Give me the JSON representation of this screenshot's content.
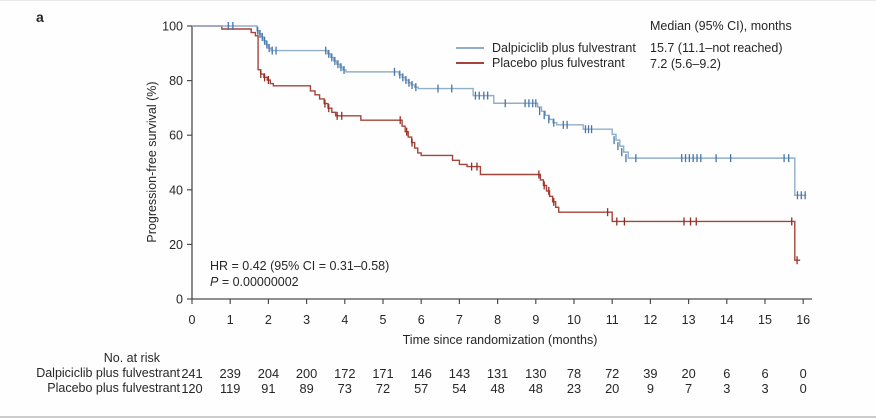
{
  "panel_label": "a",
  "chart_data": {
    "type": "line",
    "subtype": "kaplan-meier-step-curves",
    "title": "",
    "xlabel": "Time since randomization (months)",
    "ylabel": "Progression-free survival (%)",
    "xlim": [
      0,
      16.3
    ],
    "ylim": [
      0,
      100
    ],
    "xticks": [
      0,
      1,
      2,
      3,
      4,
      5,
      6,
      7,
      8,
      9,
      10,
      11,
      12,
      13,
      14,
      15,
      16
    ],
    "yticks": [
      0,
      20,
      40,
      60,
      80,
      100
    ],
    "grid": "off",
    "axis_color": "#4d4d4d",
    "legend": {
      "median_header": "Median (95% CI), months",
      "position": "top-right"
    },
    "annotations": {
      "hr_text": "HR = 0.42 (95% CI = 0.31–0.58)",
      "p_label": "P",
      "p_value": " = 0.00000002"
    },
    "series": [
      {
        "name": "Dalpiciclib plus fulvestrant",
        "color": "#92afc9",
        "censor_color": "#4576ab",
        "median_95ci": "15.7 (11.1–not reached)",
        "steps": [
          [
            0,
            100
          ],
          [
            1.7,
            98.3
          ],
          [
            1.76,
            97.1
          ],
          [
            1.82,
            96
          ],
          [
            1.88,
            94.6
          ],
          [
            1.94,
            93.2
          ],
          [
            2.0,
            91.9
          ],
          [
            2.07,
            91
          ],
          [
            3.55,
            89.8
          ],
          [
            3.63,
            88.5
          ],
          [
            3.71,
            87.2
          ],
          [
            3.79,
            86
          ],
          [
            3.87,
            84.9
          ],
          [
            3.95,
            83.9
          ],
          [
            4.03,
            83.2
          ],
          [
            5.42,
            82.2
          ],
          [
            5.5,
            81.2
          ],
          [
            5.58,
            80.2
          ],
          [
            5.66,
            79.2
          ],
          [
            5.74,
            78.4
          ],
          [
            5.83,
            77.6
          ],
          [
            5.92,
            77.1
          ],
          [
            7.36,
            74.5
          ],
          [
            7.9,
            71.7
          ],
          [
            9.05,
            70.3
          ],
          [
            9.15,
            68.8
          ],
          [
            9.25,
            67.3
          ],
          [
            9.35,
            65.8
          ],
          [
            9.45,
            64.6
          ],
          [
            9.55,
            63.8
          ],
          [
            10.24,
            62.2
          ],
          [
            11.0,
            60.3
          ],
          [
            11.1,
            58.2
          ],
          [
            11.2,
            56
          ],
          [
            11.3,
            53.8
          ],
          [
            11.42,
            51.6
          ],
          [
            15.78,
            38
          ],
          [
            16.08,
            38
          ]
        ],
        "censors": [
          [
            0.95,
            100
          ],
          [
            1.07,
            100
          ],
          [
            1.72,
            98.3
          ],
          [
            1.78,
            97.1
          ],
          [
            1.84,
            96
          ],
          [
            1.9,
            94.6
          ],
          [
            1.96,
            93.2
          ],
          [
            2.02,
            91.9
          ],
          [
            2.1,
            91
          ],
          [
            2.2,
            91
          ],
          [
            3.5,
            91
          ],
          [
            3.58,
            89.8
          ],
          [
            3.66,
            88.5
          ],
          [
            3.74,
            87.2
          ],
          [
            3.82,
            86
          ],
          [
            3.9,
            84.9
          ],
          [
            3.98,
            83.9
          ],
          [
            5.3,
            83.2
          ],
          [
            5.44,
            82.2
          ],
          [
            5.52,
            81.2
          ],
          [
            5.6,
            80.2
          ],
          [
            5.68,
            79.2
          ],
          [
            5.76,
            78.4
          ],
          [
            5.86,
            77.6
          ],
          [
            6.44,
            77.1
          ],
          [
            6.8,
            77.1
          ],
          [
            7.42,
            74.5
          ],
          [
            7.52,
            74.5
          ],
          [
            7.64,
            74.5
          ],
          [
            7.74,
            74.5
          ],
          [
            8.2,
            71.7
          ],
          [
            8.72,
            71.7
          ],
          [
            8.82,
            71.7
          ],
          [
            8.92,
            71.7
          ],
          [
            9.0,
            71.7
          ],
          [
            9.1,
            68.8
          ],
          [
            9.22,
            67.3
          ],
          [
            9.34,
            65.8
          ],
          [
            9.47,
            64.6
          ],
          [
            9.72,
            63.8
          ],
          [
            9.82,
            63.8
          ],
          [
            10.3,
            62.2
          ],
          [
            10.38,
            62.2
          ],
          [
            10.46,
            62.2
          ],
          [
            11.05,
            58.2
          ],
          [
            11.15,
            56
          ],
          [
            11.25,
            53.8
          ],
          [
            11.36,
            51.6
          ],
          [
            11.62,
            51.6
          ],
          [
            12.82,
            51.6
          ],
          [
            12.92,
            51.6
          ],
          [
            13.02,
            51.6
          ],
          [
            13.12,
            51.6
          ],
          [
            13.22,
            51.6
          ],
          [
            13.32,
            51.6
          ],
          [
            13.72,
            51.6
          ],
          [
            14.1,
            51.6
          ],
          [
            15.5,
            51.6
          ],
          [
            15.62,
            51.6
          ],
          [
            15.85,
            38
          ],
          [
            15.95,
            38
          ],
          [
            16.05,
            38
          ]
        ]
      },
      {
        "name": "Placebo plus fulvestrant",
        "color": "#a5443a",
        "censor_color": "#962d24",
        "median_95ci": "7.2 (5.6–9.2)",
        "steps": [
          [
            0,
            100
          ],
          [
            0.78,
            98.9
          ],
          [
            1.55,
            97.6
          ],
          [
            1.66,
            96.4
          ],
          [
            1.73,
            84
          ],
          [
            1.8,
            82.4
          ],
          [
            1.88,
            81.2
          ],
          [
            1.97,
            80.2
          ],
          [
            2.05,
            78.9
          ],
          [
            2.13,
            78.1
          ],
          [
            3.1,
            76.2
          ],
          [
            3.22,
            74.8
          ],
          [
            3.34,
            73.3
          ],
          [
            3.46,
            71.6
          ],
          [
            3.56,
            69.9
          ],
          [
            3.66,
            68.4
          ],
          [
            3.76,
            67.1
          ],
          [
            4.42,
            65.5
          ],
          [
            5.5,
            63.3
          ],
          [
            5.58,
            61.3
          ],
          [
            5.66,
            59.3
          ],
          [
            5.75,
            57.3
          ],
          [
            5.83,
            55.3
          ],
          [
            5.91,
            53.5
          ],
          [
            6.0,
            52.6
          ],
          [
            6.82,
            50.8
          ],
          [
            7.0,
            49.3
          ],
          [
            7.2,
            48.5
          ],
          [
            7.55,
            45.6
          ],
          [
            9.12,
            43.6
          ],
          [
            9.2,
            41.6
          ],
          [
            9.28,
            39.6
          ],
          [
            9.36,
            37.6
          ],
          [
            9.44,
            35.6
          ],
          [
            9.52,
            33.6
          ],
          [
            9.6,
            31.8
          ],
          [
            11.0,
            28.4
          ],
          [
            15.78,
            14.2
          ],
          [
            15.92,
            14.2
          ]
        ],
        "censors": [
          [
            1.8,
            82.4
          ],
          [
            1.9,
            81.2
          ],
          [
            2.0,
            80.2
          ],
          [
            3.48,
            71.6
          ],
          [
            3.58,
            69.9
          ],
          [
            3.8,
            67.1
          ],
          [
            3.92,
            67.1
          ],
          [
            5.45,
            65.5
          ],
          [
            5.62,
            61.3
          ],
          [
            5.76,
            57.3
          ],
          [
            7.32,
            48.5
          ],
          [
            7.46,
            48.5
          ],
          [
            9.08,
            45.6
          ],
          [
            9.22,
            41.6
          ],
          [
            9.34,
            39.6
          ],
          [
            9.47,
            35.6
          ],
          [
            10.88,
            31.8
          ],
          [
            11.12,
            28.4
          ],
          [
            11.32,
            28.4
          ],
          [
            12.88,
            28.4
          ],
          [
            13.05,
            28.4
          ],
          [
            13.2,
            28.4
          ],
          [
            15.7,
            28.4
          ],
          [
            15.84,
            14.2
          ]
        ]
      }
    ]
  },
  "at_risk": {
    "title": "No. at risk",
    "months": [
      0,
      1,
      2,
      3,
      4,
      5,
      6,
      7,
      8,
      9,
      10,
      11,
      12,
      13,
      14,
      15,
      16
    ],
    "rows": [
      {
        "label": "Dalpiciclib plus fulvestrant",
        "values": [
          241,
          239,
          204,
          200,
          172,
          171,
          146,
          143,
          131,
          130,
          78,
          72,
          39,
          20,
          6,
          6,
          0
        ]
      },
      {
        "label": "Placebo plus fulvestrant",
        "values": [
          120,
          119,
          91,
          89,
          73,
          72,
          57,
          54,
          48,
          48,
          23,
          20,
          9,
          7,
          3,
          3,
          0
        ]
      }
    ]
  }
}
